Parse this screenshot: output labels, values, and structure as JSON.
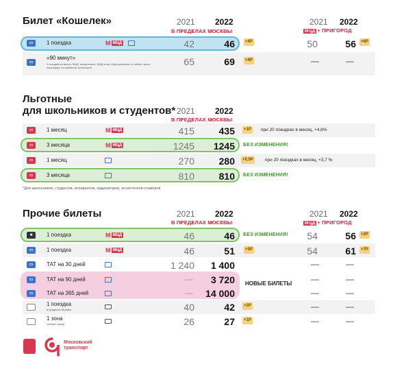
{
  "s1": {
    "title": "Билет «Кошелек»",
    "y2021": "2021",
    "y2022": "2022",
    "zone": "В ПРЕДЕЛАХ МОСКВЫ",
    "y2021b": "2021",
    "y2022b": "2022",
    "zone2_mcd": "МЦД",
    "zone2": "+ ПРИГОРОД",
    "rows": [
      {
        "label": "1 поездка",
        "v21": "42",
        "v22": "46",
        "tag": "+4Р",
        "v21b": "50",
        "v22b": "56",
        "tagb": "+6Р"
      },
      {
        "label": "«90 минут»",
        "sub": "1 поездка на метро, МЦК, монорельсе, МЦД зоны «Центральная» и любое число пересадок на наземном транспорте",
        "v21": "65",
        "v22": "69",
        "tag": "+4Р",
        "v21b": "—",
        "v22b": "—"
      }
    ]
  },
  "s2": {
    "title1": "Льготные",
    "title2": "для школьников и студентов*",
    "y2021": "2021",
    "y2022": "2022",
    "zone": "В ПРЕДЕЛАХ МОСКВЫ",
    "rows": [
      {
        "label": "1 месяц",
        "v21": "415",
        "v22": "435",
        "tag": "+1Р",
        "note": "при 20 поездках в месяц, +4,8%"
      },
      {
        "label": "3 месяца",
        "v21": "1245",
        "v22": "1245",
        "note": "БЕЗ ИЗМЕНЕНИЯ!"
      },
      {
        "label": "1 месяц",
        "v21": "270",
        "v22": "280",
        "tag": "+0,5Р",
        "note": "при 20 поездках в месяц, +3,7 %"
      },
      {
        "label": "3 месяца",
        "v21": "810",
        "v22": "810",
        "note": "БЕЗ ИЗМЕНЕНИЯ!"
      }
    ],
    "footnote": "*Для школьников, студентов, аспирантов, ординаторов, ассистентов-стажёров"
  },
  "s3": {
    "title": "Прочие билеты",
    "y2021": "2021",
    "y2022": "2022",
    "zone": "В ПРЕДЕЛАХ МОСКВЫ",
    "y2021b": "2021",
    "y2022b": "2022",
    "zone2_mcd": "МЦД",
    "zone2": "+ ПРИГОРОД",
    "rows": [
      {
        "label": "1 поездка",
        "v21": "46",
        "v22": "46",
        "note": "БЕЗ ИЗМЕНЕНИЯ!",
        "v21b": "54",
        "v22b": "56",
        "tagb": "+2Р"
      },
      {
        "label": "1 поездка",
        "v21": "46",
        "v22": "51",
        "tag": "+5Р",
        "v21b": "54",
        "v22b": "61",
        "tagb": "+7Р"
      },
      {
        "label": "ТАТ на 30 дней",
        "v21": "1 240",
        "v22": "1 400",
        "v21b": "—",
        "v22b": "—"
      },
      {
        "label": "ТАТ на 90 дней",
        "v21": "—",
        "v22": "3 720",
        "v21b": "—",
        "v22b": "—"
      },
      {
        "label": "ТАТ на 365 дней",
        "v21": "—",
        "v22": "14 000",
        "v21b": "—",
        "v22b": "—"
      },
      {
        "label": "1 поездка",
        "sub": "в пределах Москвы",
        "v21": "40",
        "v22": "42",
        "tag": "+2Р",
        "v21b": "—",
        "v22b": "—"
      },
      {
        "label": "1 зона",
        "sub": "зонный тариф",
        "v21": "26",
        "v22": "27",
        "tag": "+1Р",
        "v21b": "—",
        "v22b": "—"
      }
    ],
    "new_tickets": "НОВЫЕ БИЛЕТЫ"
  },
  "footer": {
    "brand1": "Московский",
    "brand2": "транспорт"
  },
  "icons": {
    "metro_m": "М",
    "mcd": "МЦД",
    "card": "▭"
  }
}
